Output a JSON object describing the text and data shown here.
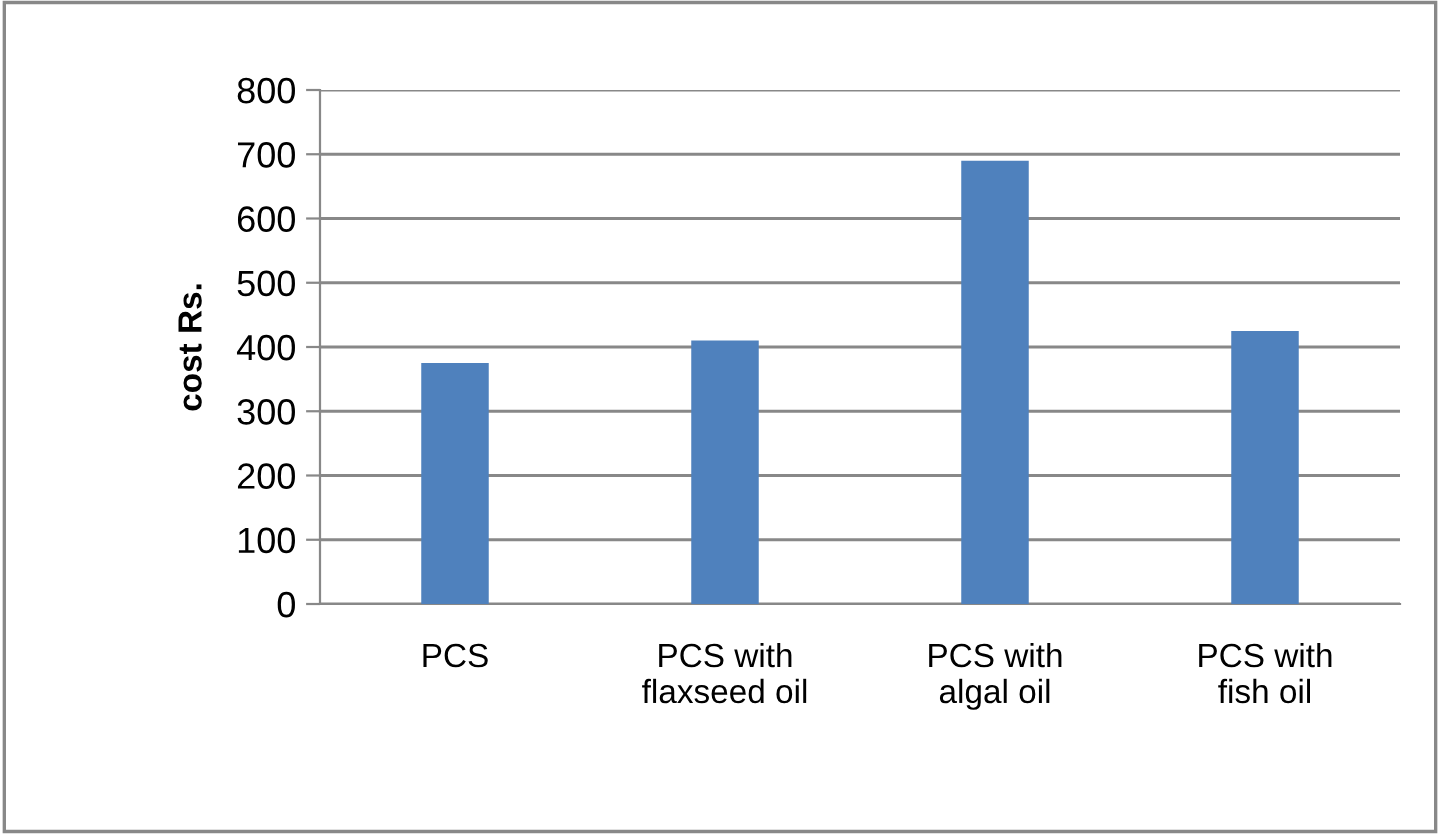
{
  "chart_data": {
    "type": "bar",
    "ylabel": "cost Rs.",
    "categories": [
      "PCS",
      "PCS with\nflaxseed oil",
      "PCS with\nalgal oil",
      "PCS with\nfish oil"
    ],
    "values": [
      375,
      410,
      690,
      425
    ],
    "color": "#4f81bd",
    "ylim": [
      0,
      800
    ],
    "yticks": [
      0,
      100,
      200,
      300,
      400,
      500,
      600,
      700,
      800
    ],
    "grid": "y"
  }
}
